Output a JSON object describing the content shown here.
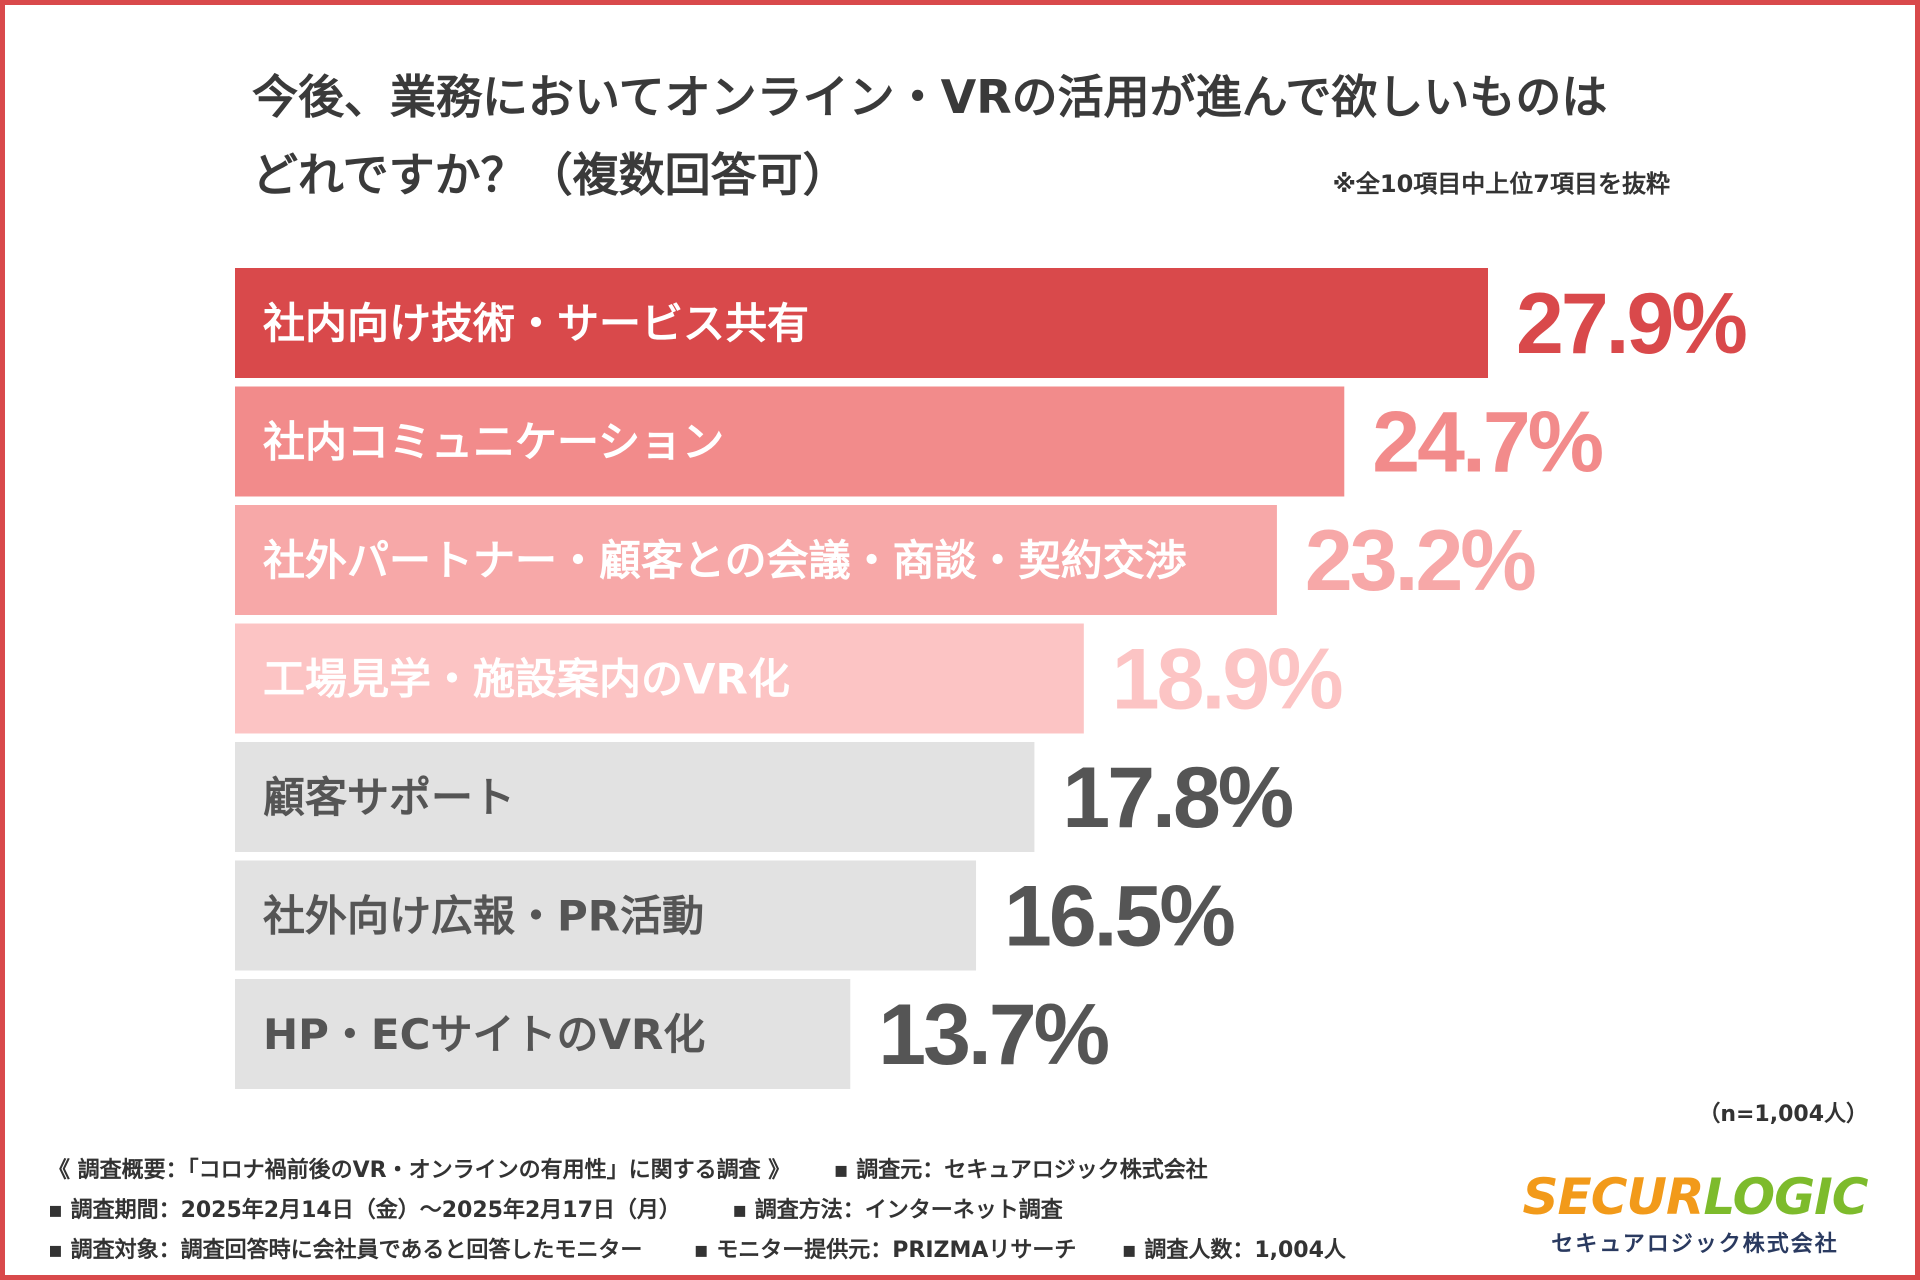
{
  "title": {
    "line1": "今後、業務においてオンライン・VRの活用が進んで欲しいものは",
    "line2": "どれですか？（複数回答可）"
  },
  "note": "※全10項目中上位7項目を抜粋",
  "colors": {
    "frame": "#d9494b",
    "text_dark": "#333333",
    "logo_orange": "#f29a1a",
    "logo_green": "#7dbb2c"
  },
  "chart_data": {
    "type": "bar",
    "orientation": "horizontal",
    "categories": [
      "社内向け技術・サービス共有",
      "社内コミュニケーション",
      "社外パートナー・顧客との会議・商談・契約交渉",
      "工場見学・施設案内のVR化",
      "顧客サポート",
      "社外向け広報・PR活動",
      "HP・ECサイトのVR化"
    ],
    "values": [
      27.9,
      24.7,
      23.2,
      18.9,
      17.8,
      16.5,
      13.7
    ],
    "value_labels": [
      "27.9%",
      "24.7%",
      "23.2%",
      "18.9%",
      "17.8%",
      "16.5%",
      "13.7%"
    ],
    "bar_colors": [
      "#d9494b",
      "#f28b8b",
      "#f7a8a8",
      "#fcc4c4",
      "#e2e2e2",
      "#e2e2e2",
      "#e2e2e2"
    ],
    "label_colors": [
      "#ffffff",
      "#ffffff",
      "#ffffff",
      "#ffffff",
      "#555555",
      "#555555",
      "#555555"
    ],
    "value_colors": [
      "#d9494b",
      "#f28b8b",
      "#f7a8a8",
      "#fcc4c4",
      "#555555",
      "#555555",
      "#555555"
    ],
    "unit": "%",
    "xlim": [
      0,
      27.9
    ]
  },
  "n_label": "（n=1,004人）",
  "footer": {
    "overview": "《 調査概要：「コロナ禍前後のVR・オンラインの有用性」に関する調査 》",
    "source": "▪ 調査元：セキュアロジック株式会社",
    "period": "▪ 調査期間：2025年2月14日（金）〜2025年2月17日（月）",
    "method": "▪ 調査方法：インターネット調査",
    "target": "▪ 調査対象：調査回答時に会社員であると回答したモニター",
    "provider": "▪ モニター提供元：PRIZMAリサーチ",
    "count": "▪ 調査人数：1,004人"
  },
  "logo": {
    "part1": "SECUR",
    "part2": "LOGIC",
    "sub": "セキュアロジック株式会社"
  }
}
